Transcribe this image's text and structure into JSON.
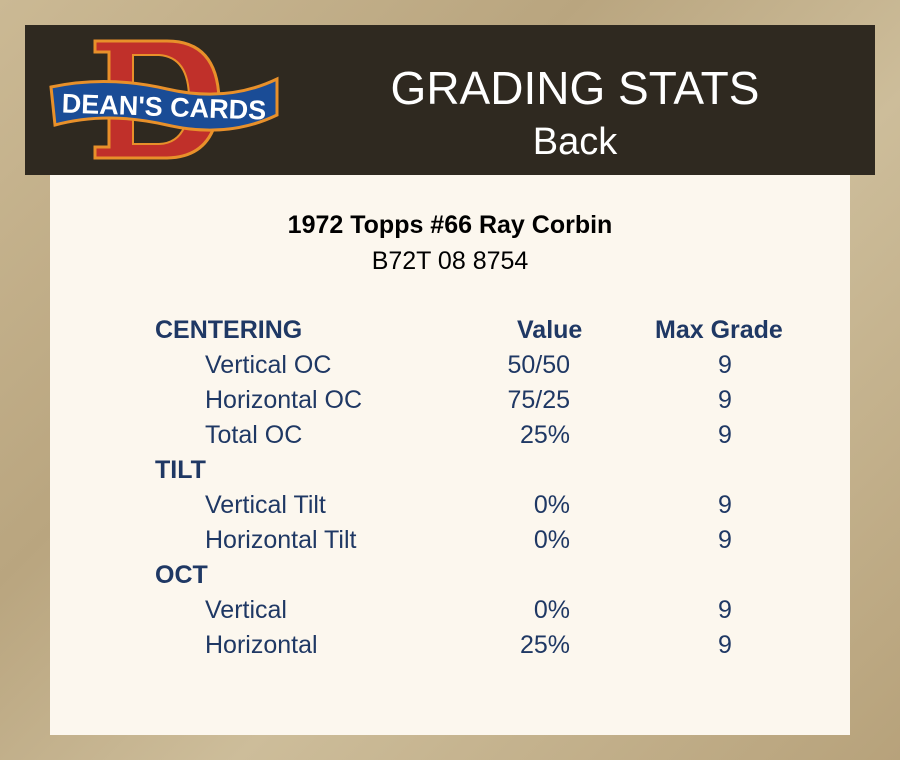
{
  "logo": {
    "text": "DEAN'S CARDS",
    "letter": "D"
  },
  "header": {
    "title": "GRADING STATS",
    "subtitle": "Back"
  },
  "card": {
    "title": "1972 Topps #66 Ray Corbin",
    "code": "B72T 08 8754"
  },
  "columns": {
    "value": "Value",
    "max_grade": "Max Grade"
  },
  "sections": [
    {
      "label": "CENTERING",
      "rows": [
        {
          "label": "Vertical OC",
          "value": "50/50",
          "max": "9"
        },
        {
          "label": "Horizontal OC",
          "value": "75/25",
          "max": "9"
        },
        {
          "label": "Total OC",
          "value": "25%",
          "max": "9"
        }
      ]
    },
    {
      "label": "TILT",
      "rows": [
        {
          "label": "Vertical Tilt",
          "value": "0%",
          "max": "9"
        },
        {
          "label": "Horizontal Tilt",
          "value": "0%",
          "max": "9"
        }
      ]
    },
    {
      "label": "OCT",
      "rows": [
        {
          "label": "Vertical",
          "value": "0%",
          "max": "9"
        },
        {
          "label": "Horizontal",
          "value": "25%",
          "max": "9"
        }
      ]
    }
  ],
  "colors": {
    "text": "#1f3864",
    "header": "#2f2920",
    "panel": "#fcf7ee",
    "logo_red": "#c0302a",
    "logo_blue": "#1a4c96",
    "logo_orange": "#e8902a"
  }
}
